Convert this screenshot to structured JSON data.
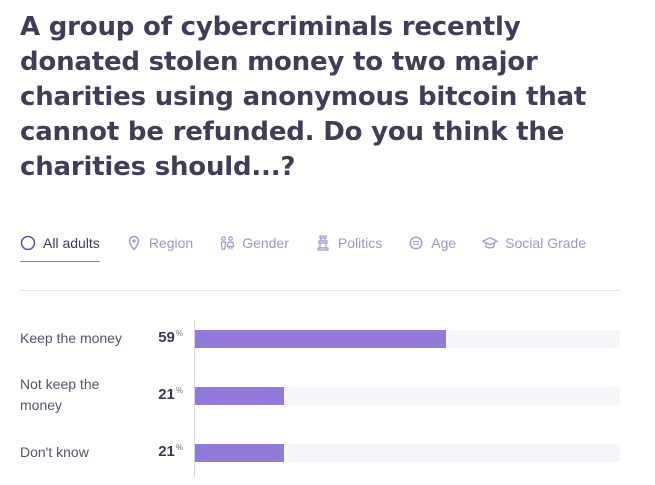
{
  "title": "A group of cybercriminals recently donated stolen money to two major charities using anonymous bitcoin that cannot be refunded. Do you think the charities should...?",
  "tabs": [
    {
      "label": "All adults",
      "icon": "circle-icon",
      "active": true
    },
    {
      "label": "Region",
      "icon": "map-pin-icon",
      "active": false
    },
    {
      "label": "Gender",
      "icon": "gender-icon",
      "active": false
    },
    {
      "label": "Politics",
      "icon": "politics-icon",
      "active": false
    },
    {
      "label": "Age",
      "icon": "age-icon",
      "active": false
    },
    {
      "label": "Social Grade",
      "icon": "graduation-cap-icon",
      "active": false
    }
  ],
  "colors": {
    "bar": "#9379d9",
    "track": "#f6f5fa",
    "active_tab": "#3e3c55",
    "inactive_tab": "#9a98c9"
  },
  "chart_data": {
    "type": "bar",
    "orientation": "horizontal",
    "categories": [
      "Keep the money",
      "Not keep the money",
      "Don't know"
    ],
    "values": [
      59,
      21,
      21
    ],
    "value_suffix": "%",
    "xlim": [
      0,
      100
    ],
    "grid": false
  }
}
